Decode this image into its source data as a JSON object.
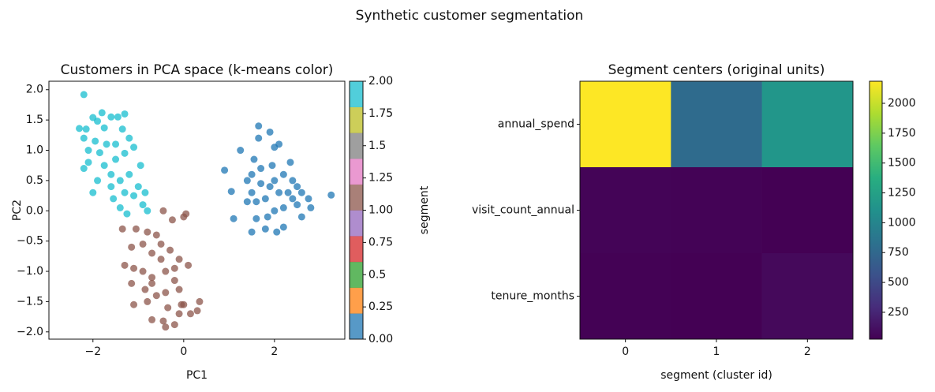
{
  "title": "Synthetic customer segmentation",
  "chart_data": [
    {
      "type": "scatter",
      "title": "Customers in PCA space (k-means color)",
      "xlabel": "PC1",
      "ylabel": "PC2",
      "xlim": [
        -2.97,
        3.55
      ],
      "ylim": [
        -2.12,
        2.14
      ],
      "xticks": [
        {
          "value": -2,
          "label": "−2"
        },
        0,
        2
      ],
      "yticks": [
        {
          "value": -2,
          "label": "−2.0"
        },
        {
          "value": -1.5,
          "label": "−1.5"
        },
        {
          "value": -1,
          "label": "−1.0"
        },
        {
          "value": -0.5,
          "label": "−0.5"
        },
        {
          "value": 0,
          "label": "0.0"
        },
        0.5,
        {
          "value": 1,
          "label": "1.0"
        },
        1.5,
        {
          "value": 2,
          "label": "2.0"
        }
      ],
      "alpha": 0.75,
      "colorbar": {
        "label": "segment",
        "lim": [
          0,
          2
        ],
        "ticks": [
          {
            "value": 0,
            "label": "0.00"
          },
          0.25,
          0.5,
          0.75,
          {
            "value": 1,
            "label": "1.00"
          },
          1.25,
          1.5,
          1.75,
          {
            "value": 2,
            "label": "2.00"
          }
        ],
        "colors": [
          "#1f77b4",
          "#ff7f0e",
          "#2ca02c",
          "#d62728",
          "#9467bd",
          "#8c564b",
          "#e377c2",
          "#7f7f7f",
          "#bcbd22",
          "#17becf"
        ]
      },
      "series": [
        {
          "segment": 0,
          "x": [
            1.65,
            1.65,
            1.9,
            1.25,
            2.0,
            2.1,
            0.9,
            1.05,
            1.1,
            1.6,
            1.5,
            1.8,
            2.05,
            2.2,
            3.25,
            2.75,
            2.8,
            2.6,
            2.5,
            2.4,
            2.2,
            1.7,
            1.5,
            1.4,
            1.5,
            1.6,
            1.8,
            1.9,
            2.0,
            2.1,
            2.3,
            2.4,
            2.2,
            2.0,
            1.85,
            2.5,
            2.6,
            1.7,
            1.95,
            2.35,
            1.4,
            1.55
          ],
          "y": [
            1.4,
            1.2,
            1.3,
            1.0,
            1.05,
            1.1,
            0.67,
            0.32,
            -0.13,
            -0.13,
            -0.35,
            -0.3,
            -0.35,
            -0.27,
            0.26,
            0.2,
            0.05,
            -0.1,
            0.4,
            0.5,
            0.6,
            0.7,
            0.6,
            0.5,
            0.3,
            0.15,
            0.2,
            0.4,
            0.5,
            0.3,
            0.3,
            0.2,
            0.05,
            0.0,
            -0.1,
            0.1,
            0.3,
            0.45,
            0.75,
            0.8,
            0.15,
            0.85
          ]
        },
        {
          "segment": 1,
          "x": [
            -1.05,
            -0.45,
            -0.25,
            0.05,
            -1.15,
            -1.35,
            -0.8,
            -0.6,
            -0.9,
            -0.7,
            -0.5,
            -0.3,
            -0.1,
            0.1,
            -1.3,
            -1.1,
            -0.9,
            -0.7,
            -0.4,
            -0.2,
            -0.1,
            -1.15,
            -0.85,
            -0.6,
            -0.4,
            -1.1,
            -0.8,
            -0.35,
            -0.05,
            0.0,
            0.35,
            0.3,
            0.15,
            -0.1,
            -0.45,
            -0.7,
            -0.4,
            -0.2,
            -0.7,
            -0.5,
            -0.2,
            0.0
          ],
          "y": [
            -0.3,
            0.0,
            -0.15,
            -0.05,
            -0.6,
            -0.3,
            -0.35,
            -0.4,
            -0.55,
            -0.7,
            -0.8,
            -0.65,
            -0.8,
            -0.9,
            -0.9,
            -0.95,
            -1.0,
            -1.1,
            -1.0,
            -1.15,
            -1.3,
            -1.2,
            -1.3,
            -1.4,
            -1.35,
            -1.55,
            -1.5,
            -1.6,
            -1.55,
            -1.55,
            -1.5,
            -1.65,
            -1.7,
            -1.7,
            -1.82,
            -1.8,
            -1.92,
            -1.88,
            -1.2,
            -0.55,
            -0.95,
            -0.1
          ]
        },
        {
          "segment": 2,
          "x": [
            -2.2,
            -2.0,
            -1.9,
            -1.8,
            -1.6,
            -1.45,
            -1.3,
            -2.3,
            -2.15,
            -1.75,
            -2.2,
            -2.1,
            -1.85,
            -2.1,
            -2.2,
            -1.9,
            -2.0,
            -1.75,
            -1.5,
            -1.3,
            -1.1,
            -1.6,
            -1.4,
            -1.2,
            -0.95,
            -1.3,
            -1.1,
            -0.85,
            -1.4,
            -1.55,
            -1.25,
            -0.9,
            -0.8,
            -1.5,
            -1.7,
            -1.95,
            -1.35,
            -1.2,
            -1.0,
            -1.6
          ],
          "y": [
            1.92,
            1.54,
            1.48,
            1.62,
            1.55,
            1.55,
            1.6,
            1.36,
            1.35,
            1.37,
            1.2,
            1.0,
            0.96,
            0.8,
            0.7,
            0.5,
            0.3,
            0.75,
            0.85,
            0.95,
            1.05,
            0.6,
            0.5,
            0.6,
            0.75,
            0.3,
            0.25,
            0.3,
            0.05,
            0.2,
            -0.05,
            0.1,
            0.0,
            1.1,
            1.1,
            1.15,
            1.35,
            1.2,
            0.4,
            0.4
          ]
        }
      ]
    },
    {
      "type": "heatmap",
      "title": "Segment centers (original units)",
      "xlabel": "segment (cluster id)",
      "xlim": [
        -0.5,
        2.5
      ],
      "xticks": [
        0,
        1,
        2
      ],
      "rows": [
        "annual_spend",
        "visit_count_annual",
        "tenure_months"
      ],
      "values": [
        [
          2185,
          780,
          1150
        ],
        [
          45,
          40,
          25
        ],
        [
          30,
          25,
          75
        ]
      ],
      "colorbar": {
        "lim": [
          25,
          2185
        ],
        "ticks": [
          250,
          500,
          750,
          1000,
          1250,
          1500,
          1750,
          2000
        ],
        "colors": [
          "#440154",
          "#472d7b",
          "#3b528b",
          "#2c728e",
          "#21918c",
          "#28ae80",
          "#5ec962",
          "#addc30",
          "#fde725"
        ]
      }
    }
  ]
}
